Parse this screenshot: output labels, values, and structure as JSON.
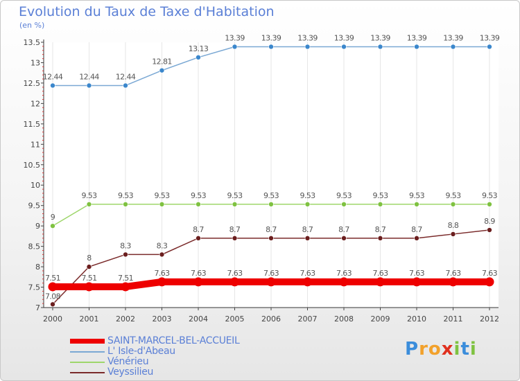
{
  "title": "Evolution du Taux de Taxe d'Habitation",
  "subtitle": "(en %)",
  "brand": {
    "letters": [
      {
        "char": "P",
        "color": "#3b8ddb"
      },
      {
        "char": "r",
        "color": "#f2a12b"
      },
      {
        "char": "o",
        "color": "#f2a12b"
      },
      {
        "char": "x",
        "color": "#e0301e"
      },
      {
        "char": "i",
        "color": "#7fc241"
      },
      {
        "char": "t",
        "color": "#3b8ddb"
      },
      {
        "char": "i",
        "color": "#7fc241"
      }
    ]
  },
  "chart_data": {
    "type": "line",
    "title": "Evolution du Taux de Taxe d'Habitation",
    "ylabel": "(en %)",
    "xlabel": "",
    "ylim": [
      7,
      13.5
    ],
    "yticks": [
      "7",
      "7.5",
      "8",
      "8.5",
      "9",
      "9.5",
      "10",
      "10.5",
      "11",
      "11.5",
      "12",
      "12.5",
      "13",
      "13.5"
    ],
    "x": [
      "2000",
      "2001",
      "2002",
      "2003",
      "2004",
      "2005",
      "2006",
      "2007",
      "2008",
      "2009",
      "2010",
      "2011",
      "2012"
    ],
    "series": [
      {
        "name": "SAINT-MARCEL-BEL-ACCUEIL",
        "color": "#ee0000",
        "values": [
          7.51,
          7.51,
          7.51,
          7.63,
          7.63,
          7.63,
          7.63,
          7.63,
          7.63,
          7.63,
          7.63,
          7.63,
          7.63
        ],
        "labels": [
          "7.51",
          "7.51",
          "7.51",
          "7.63",
          "7.63",
          "7.63",
          "7.63",
          "7.63",
          "7.63",
          "7.63",
          "7.63",
          "7.63",
          "7.63"
        ]
      },
      {
        "name": "L' Isle-d'Abeau",
        "color": "#7aa8d4",
        "marker": "#3b87cc",
        "values": [
          12.44,
          12.44,
          12.44,
          12.81,
          13.13,
          13.39,
          13.39,
          13.39,
          13.39,
          13.39,
          13.39,
          13.39,
          13.39
        ],
        "labels": [
          "12.44",
          "12.44",
          "12.44",
          "12.81",
          "13.13",
          "13.39",
          "13.39",
          "13.39",
          "13.39",
          "13.39",
          "13.39",
          "13.39",
          "13.39"
        ]
      },
      {
        "name": "Vénérieu",
        "color": "#9ed66b",
        "marker": "#7fc241",
        "values": [
          9,
          9.53,
          9.53,
          9.53,
          9.53,
          9.53,
          9.53,
          9.53,
          9.53,
          9.53,
          9.53,
          9.53,
          9.53
        ],
        "labels": [
          "9",
          "9.53",
          "9.53",
          "9.53",
          "9.53",
          "9.53",
          "9.53",
          "9.53",
          "9.53",
          "9.53",
          "9.53",
          "9.53",
          "9.53"
        ]
      },
      {
        "name": "Veyssilieu",
        "color": "#7a2a2a",
        "marker": "#6b1e1e",
        "values": [
          7.08,
          8,
          8.3,
          8.3,
          8.7,
          8.7,
          8.7,
          8.7,
          8.7,
          8.7,
          8.7,
          8.8,
          8.9
        ],
        "labels": [
          "7.08",
          "8",
          "8.3",
          "8.3",
          "8.7",
          "8.7",
          "8.7",
          "8.7",
          "8.7",
          "8.7",
          "8.7",
          "8.8",
          "8.9"
        ]
      }
    ]
  }
}
